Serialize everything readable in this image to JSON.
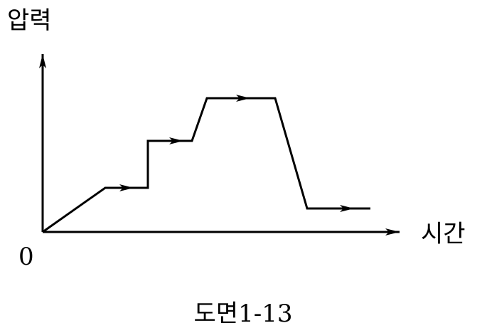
{
  "axes": {
    "y_label": "압력",
    "x_label": "시간",
    "origin": "0"
  },
  "caption": "도면1-13"
}
